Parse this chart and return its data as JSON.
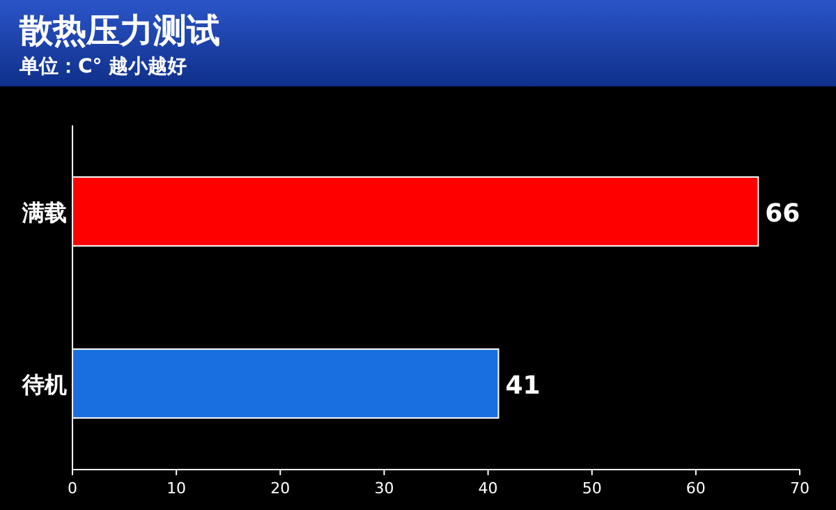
{
  "chart_data": {
    "type": "bar",
    "orientation": "horizontal",
    "title": "散热压力测试",
    "subtitle": "单位：C° 越小越好",
    "categories": [
      "满载",
      "待机"
    ],
    "values": [
      66,
      41
    ],
    "colors": [
      "#ff0000",
      "#1a6fe0"
    ],
    "xlim": [
      0,
      70
    ],
    "xticks": [
      0,
      10,
      20,
      30,
      40,
      50,
      60,
      70
    ],
    "data_labels": true
  }
}
